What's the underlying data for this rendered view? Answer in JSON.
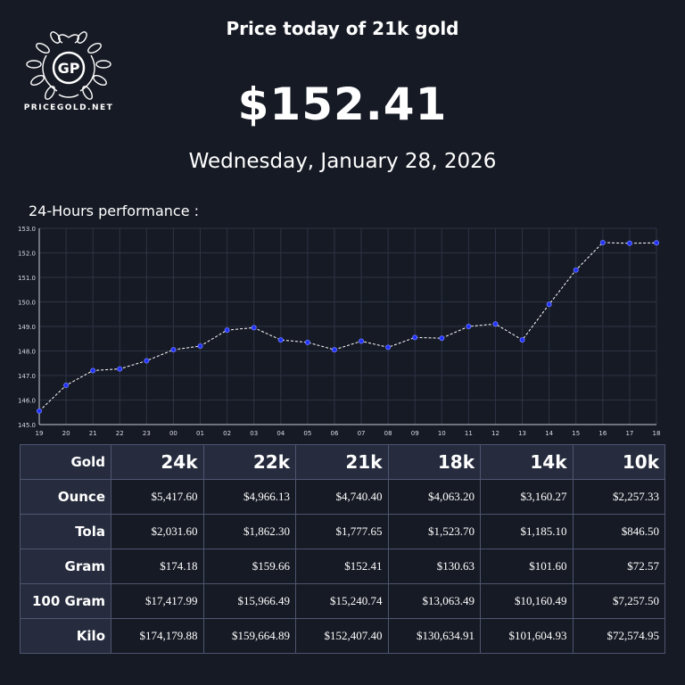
{
  "site": {
    "logo_monogram": "GP",
    "logo_text": "PRICEGOLD.NET"
  },
  "header": {
    "title": "Price today of 21k gold",
    "price": "$152.41",
    "date": "Wednesday, January 28, 2026"
  },
  "performance_label": "24-Hours performance :",
  "colors": {
    "background": "#161a24",
    "header_cell": "#262c3e",
    "point": "#2233ff",
    "line": "#ffffff"
  },
  "chart_data": {
    "type": "line",
    "title": "",
    "xlabel": "",
    "ylabel": "",
    "categories": [
      "19",
      "20",
      "21",
      "22",
      "23",
      "00",
      "01",
      "02",
      "03",
      "04",
      "05",
      "06",
      "07",
      "08",
      "09",
      "10",
      "11",
      "12",
      "13",
      "14",
      "15",
      "16",
      "17",
      "18"
    ],
    "series": [
      {
        "values": [
          145.55,
          146.6,
          147.2,
          147.27,
          147.6,
          148.05,
          148.2,
          148.85,
          148.95,
          148.45,
          148.35,
          148.05,
          148.4,
          148.15,
          148.55,
          148.52,
          149.0,
          149.1,
          148.45,
          149.9,
          151.3,
          152.42,
          152.39,
          152.41
        ]
      }
    ],
    "ylim": [
      145.0,
      153.0
    ],
    "yticks": [
      "145.0",
      "146.0",
      "147.0",
      "148.0",
      "149.0",
      "150.0",
      "151.0",
      "152.0",
      "153.0"
    ],
    "grid": true,
    "line_style": "dashed",
    "legend": "none"
  },
  "table": {
    "corner": "Gold",
    "columns": [
      "24k",
      "22k",
      "21k",
      "18k",
      "14k",
      "10k"
    ],
    "rows": [
      {
        "label": "Ounce",
        "values": [
          "$5,417.60",
          "$4,966.13",
          "$4,740.40",
          "$4,063.20",
          "$3,160.27",
          "$2,257.33"
        ]
      },
      {
        "label": "Tola",
        "values": [
          "$2,031.60",
          "$1,862.30",
          "$1,777.65",
          "$1,523.70",
          "$1,185.10",
          "$846.50"
        ]
      },
      {
        "label": "Gram",
        "values": [
          "$174.18",
          "$159.66",
          "$152.41",
          "$130.63",
          "$101.60",
          "$72.57"
        ]
      },
      {
        "label": "100 Gram",
        "values": [
          "$17,417.99",
          "$15,966.49",
          "$15,240.74",
          "$13,063.49",
          "$10,160.49",
          "$7,257.50"
        ]
      },
      {
        "label": "Kilo",
        "values": [
          "$174,179.88",
          "$159,664.89",
          "$152,407.40",
          "$130,634.91",
          "$101,604.93",
          "$72,574.95"
        ]
      }
    ]
  }
}
